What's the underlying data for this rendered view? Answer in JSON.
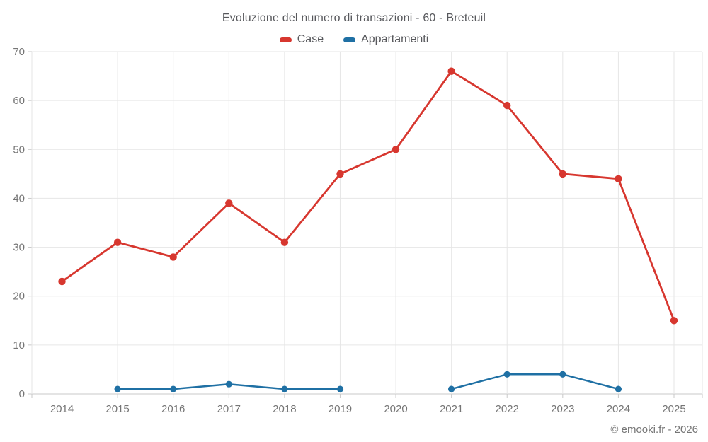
{
  "title": "Evoluzione del numero di transazioni - 60 - Breteuil",
  "legend": [
    {
      "label": "Case",
      "color": "#d7372f"
    },
    {
      "label": "Appartamenti",
      "color": "#1f70a4"
    }
  ],
  "footer": "© emooki.fr - 2026",
  "colors": {
    "grid": "#e6e6e6",
    "axis": "#c9c9c9",
    "tick_text": "#757575",
    "title_text": "#57585c"
  },
  "chart_data": {
    "type": "line",
    "x": [
      2014,
      2015,
      2016,
      2017,
      2018,
      2019,
      2020,
      2021,
      2022,
      2023,
      2024,
      2025
    ],
    "series": [
      {
        "name": "Case",
        "color": "#d7372f",
        "values": [
          23,
          31,
          28,
          39,
          31,
          45,
          50,
          66,
          59,
          45,
          44,
          15
        ]
      },
      {
        "name": "Appartamenti",
        "color": "#1f70a4",
        "values": [
          null,
          1,
          1,
          2,
          1,
          1,
          null,
          1,
          4,
          4,
          1,
          null
        ]
      }
    ],
    "title": "Evoluzione del numero di transazioni - 60 - Breteuil",
    "xlabel": "",
    "ylabel": "",
    "ylim": [
      0,
      70
    ],
    "yticks": [
      0,
      10,
      20,
      30,
      40,
      50,
      60,
      70
    ],
    "grid": true,
    "legend_position": "top",
    "marker": "circle"
  }
}
